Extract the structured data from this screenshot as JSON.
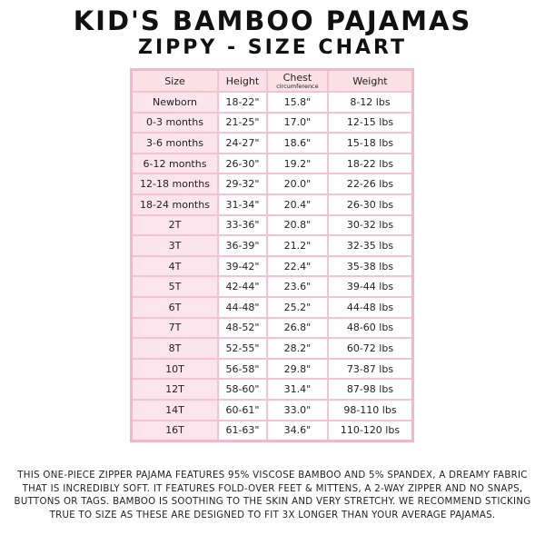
{
  "title": "KID'S BAMBOO PAJAMAS",
  "subtitle": "ZIPPY - SIZE CHART",
  "headers": {
    "size": "Size",
    "height": "Height",
    "chest": "Chest",
    "chest_sub": "circumference",
    "weight": "Weight"
  },
  "rows": [
    [
      "Newborn",
      "18-22\"",
      "15.8\"",
      "8-12 lbs"
    ],
    [
      "0-3 months",
      "21-25\"",
      "17.0\"",
      "12-15 lbs"
    ],
    [
      "3-6 months",
      "24-27\"",
      "18.6\"",
      "15-18 lbs"
    ],
    [
      "6-12 months",
      "26-30\"",
      "19.2\"",
      "18-22 lbs"
    ],
    [
      "12-18 months",
      "29-32\"",
      "20.0\"",
      "22-26 lbs"
    ],
    [
      "18-24 months",
      "31-34\"",
      "20.4\"",
      "26-30 lbs"
    ],
    [
      "2T",
      "33-36\"",
      "20.8\"",
      "30-32 lbs"
    ],
    [
      "3T",
      "36-39\"",
      "21.2\"",
      "32-35 lbs"
    ],
    [
      "4T",
      "39-42\"",
      "22.4\"",
      "35-38 lbs"
    ],
    [
      "5T",
      "42-44\"",
      "23.6\"",
      "39-44 lbs"
    ],
    [
      "6T",
      "44-48\"",
      "25.2\"",
      "44-48 lbs"
    ],
    [
      "7T",
      "48-52\"",
      "26.8\"",
      "48-60 lbs"
    ],
    [
      "8T",
      "52-55\"",
      "28.2\"",
      "60-72 lbs"
    ],
    [
      "10T",
      "56-58\"",
      "29.8\"",
      "73-87 lbs"
    ],
    [
      "12T",
      "58-60\"",
      "31.4\"",
      "87-98 lbs"
    ],
    [
      "14T",
      "60-61\"",
      "33.0\"",
      "98-110 lbs"
    ],
    [
      "16T",
      "61-63\"",
      "34.6\"",
      "110-120 lbs"
    ]
  ],
  "description": "This one-piece zipper pajama features 95% viscose bamboo and 5% spandex, a dreamy fabric that is incredibly soft. It features fold-over feet & mittens, a 2-way zipper and no snaps, buttons or tags. Bamboo is soothing to the skin and very stretchy. We recommend sticking true to size as these are designed to fit 3x longer than your average pajamas.",
  "colors": {
    "border": "#f4c2d1",
    "header_bg": "#fbe0e8"
  }
}
